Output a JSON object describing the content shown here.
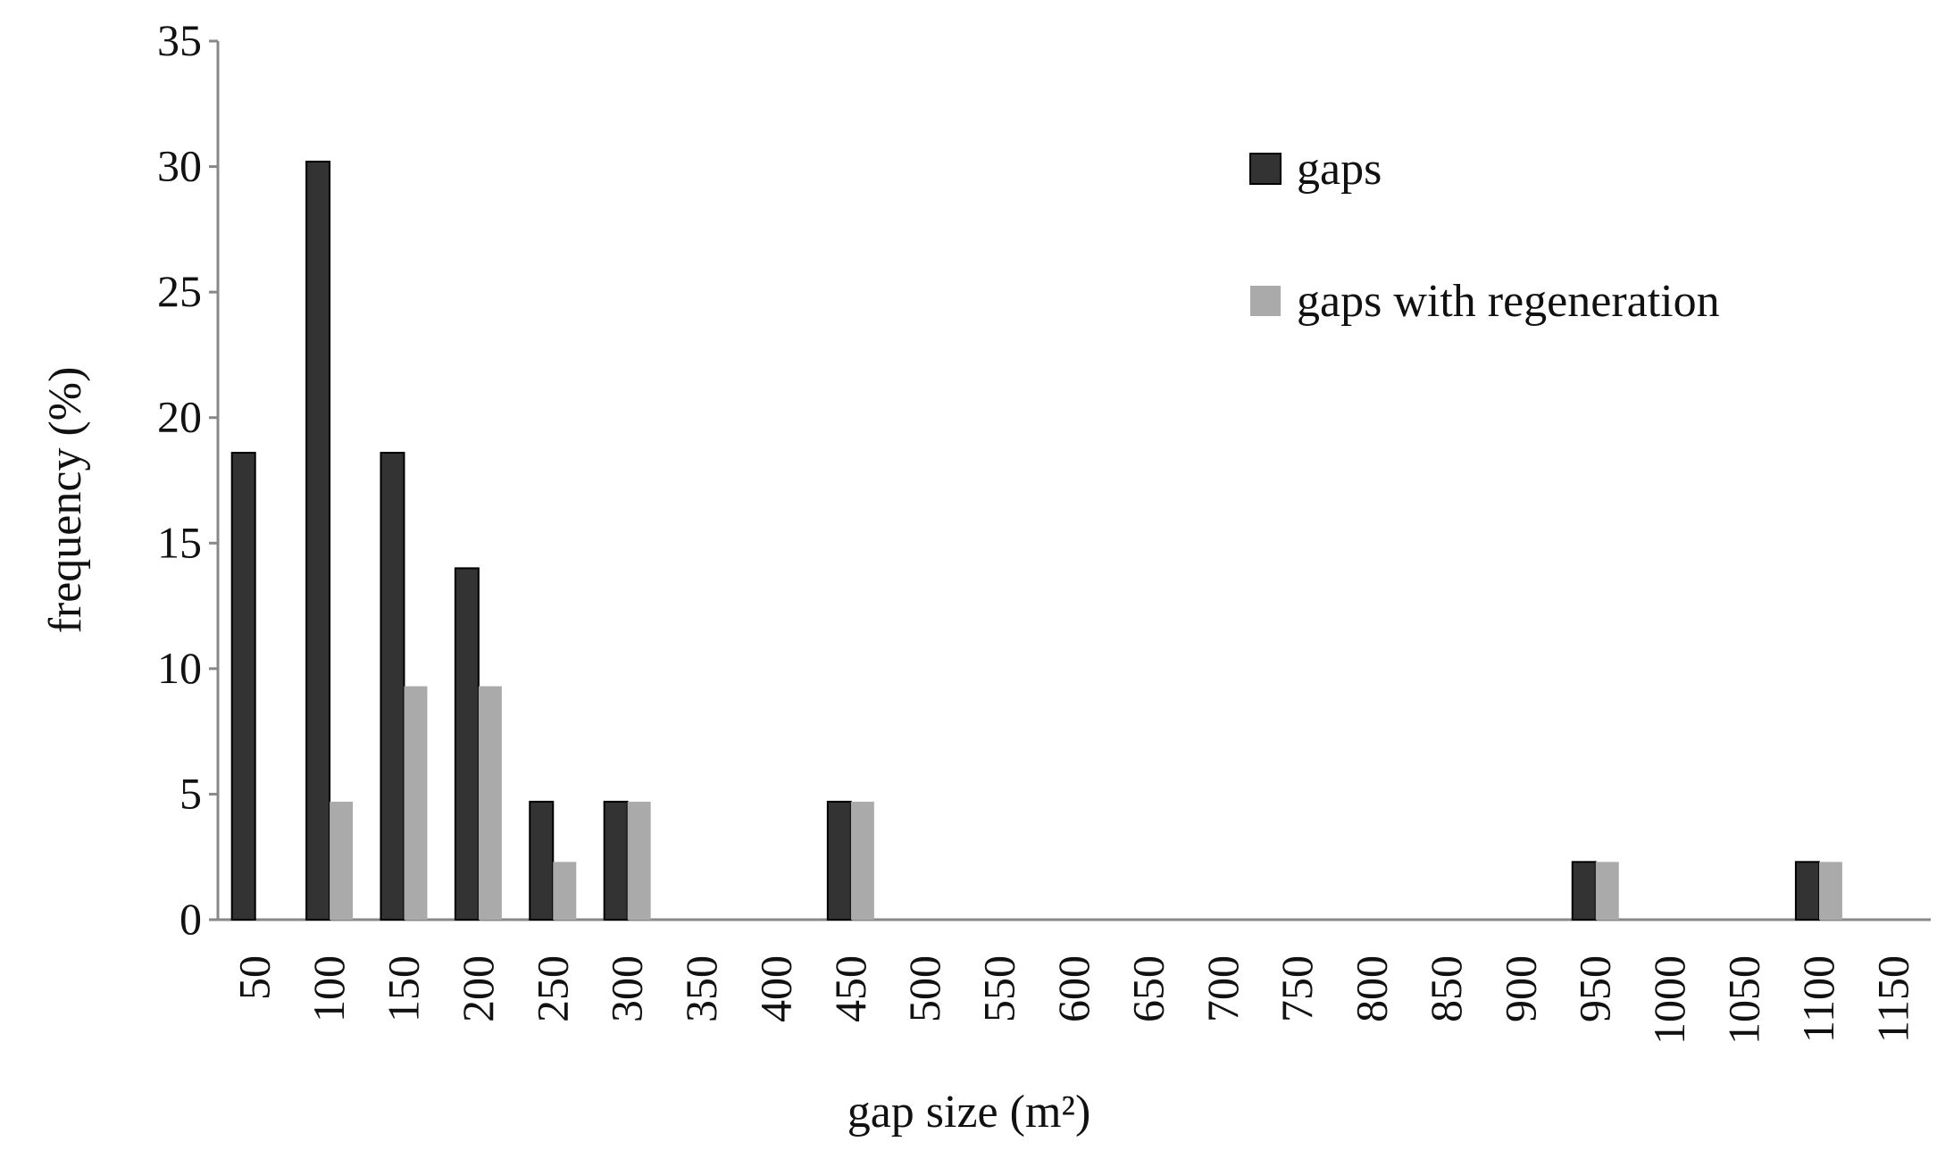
{
  "chart_data": {
    "type": "bar",
    "x_label": "gap size (m²)",
    "y_label": "frequency (%)",
    "categories": [
      "50",
      "100",
      "150",
      "200",
      "250",
      "300",
      "350",
      "400",
      "450",
      "500",
      "550",
      "600",
      "650",
      "700",
      "750",
      "800",
      "850",
      "900",
      "950",
      "1000",
      "1050",
      "1100",
      "1150"
    ],
    "series": [
      {
        "name": "gaps",
        "color": "#333333",
        "values": [
          18.6,
          30.2,
          18.6,
          14,
          4.7,
          4.7,
          0,
          0,
          4.7,
          0,
          0,
          0,
          0,
          0,
          0,
          0,
          0,
          0,
          2.3,
          0,
          0,
          2.3,
          0
        ]
      },
      {
        "name": "gaps with regeneration",
        "color": "#aaaaaa",
        "values": [
          0,
          4.7,
          9.3,
          9.3,
          2.3,
          4.7,
          0,
          0,
          4.7,
          0,
          0,
          0,
          0,
          0,
          0,
          0,
          0,
          0,
          2.3,
          0,
          0,
          2.3,
          0
        ]
      }
    ],
    "ylim": [
      0,
      35
    ],
    "yticks": [
      0,
      5,
      10,
      15,
      20,
      25,
      30,
      35
    ],
    "legend": "upper right",
    "grid": false
  }
}
